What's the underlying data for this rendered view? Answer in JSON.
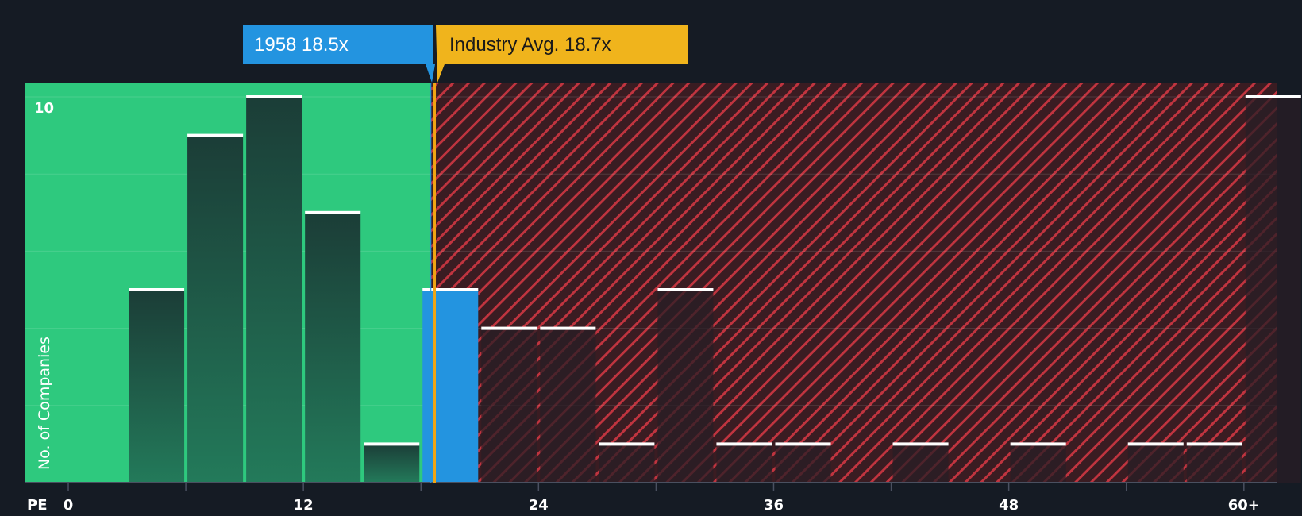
{
  "chart_data": {
    "type": "bar",
    "title": "",
    "xlabel": "PE",
    "ylabel": "No. of Companies",
    "x_ticks": [
      "0",
      "12",
      "24",
      "36",
      "48",
      "60+"
    ],
    "y_ticks": [
      "10"
    ],
    "ylim": [
      0,
      10
    ],
    "bins": [
      {
        "x": 1.5,
        "value": 0
      },
      {
        "x": 4.5,
        "value": 5
      },
      {
        "x": 7.5,
        "value": 9
      },
      {
        "x": 10.5,
        "value": 10
      },
      {
        "x": 13.5,
        "value": 7
      },
      {
        "x": 16.5,
        "value": 1
      },
      {
        "x": 19.5,
        "value": 5
      },
      {
        "x": 22.5,
        "value": 4
      },
      {
        "x": 25.5,
        "value": 4
      },
      {
        "x": 28.5,
        "value": 1
      },
      {
        "x": 31.5,
        "value": 5
      },
      {
        "x": 34.5,
        "value": 1
      },
      {
        "x": 37.5,
        "value": 1
      },
      {
        "x": 40.5,
        "value": 0
      },
      {
        "x": 43.5,
        "value": 1
      },
      {
        "x": 46.5,
        "value": 0
      },
      {
        "x": 49.5,
        "value": 1
      },
      {
        "x": 52.5,
        "value": 0
      },
      {
        "x": 55.5,
        "value": 1
      },
      {
        "x": 58.5,
        "value": 1
      },
      {
        "x": 61.5,
        "value": 10
      }
    ],
    "company": {
      "label": "1958 18.5x",
      "pe": 18.5
    },
    "industry_avg": {
      "label": "Industry Avg. 18.7x",
      "pe": 18.7
    },
    "grid": true
  },
  "colors": {
    "background": "#151b24",
    "undervalued_zone": "#2ec97e",
    "overvalued_zone": "#3a1c22",
    "hatch": "#c0343f",
    "green_bar": "#1e4a3d",
    "dark_bar": "#2a1f28",
    "company_bar": "#2394e0",
    "company_callout": "#2394e0",
    "industry_callout": "#f0b41c",
    "industry_line": "#f0a514",
    "cap": "#ffffff"
  }
}
